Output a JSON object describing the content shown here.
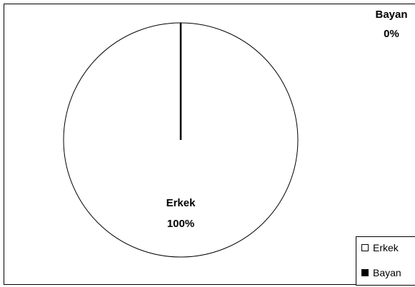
{
  "chart_data": {
    "type": "pie",
    "categories": [
      "Erkek",
      "Bayan"
    ],
    "values": [
      100,
      0
    ],
    "data_labels": [
      {
        "name": "Erkek",
        "percent": "100%"
      },
      {
        "name": "Bayan",
        "percent": "0%"
      }
    ],
    "legend": {
      "placement": "bottom-right",
      "entries": [
        {
          "label": "Erkek",
          "color": "#ffffff"
        },
        {
          "label": "Bayan",
          "color": "#000000"
        }
      ]
    },
    "colors": [
      "#ffffff",
      "#000000"
    ]
  }
}
